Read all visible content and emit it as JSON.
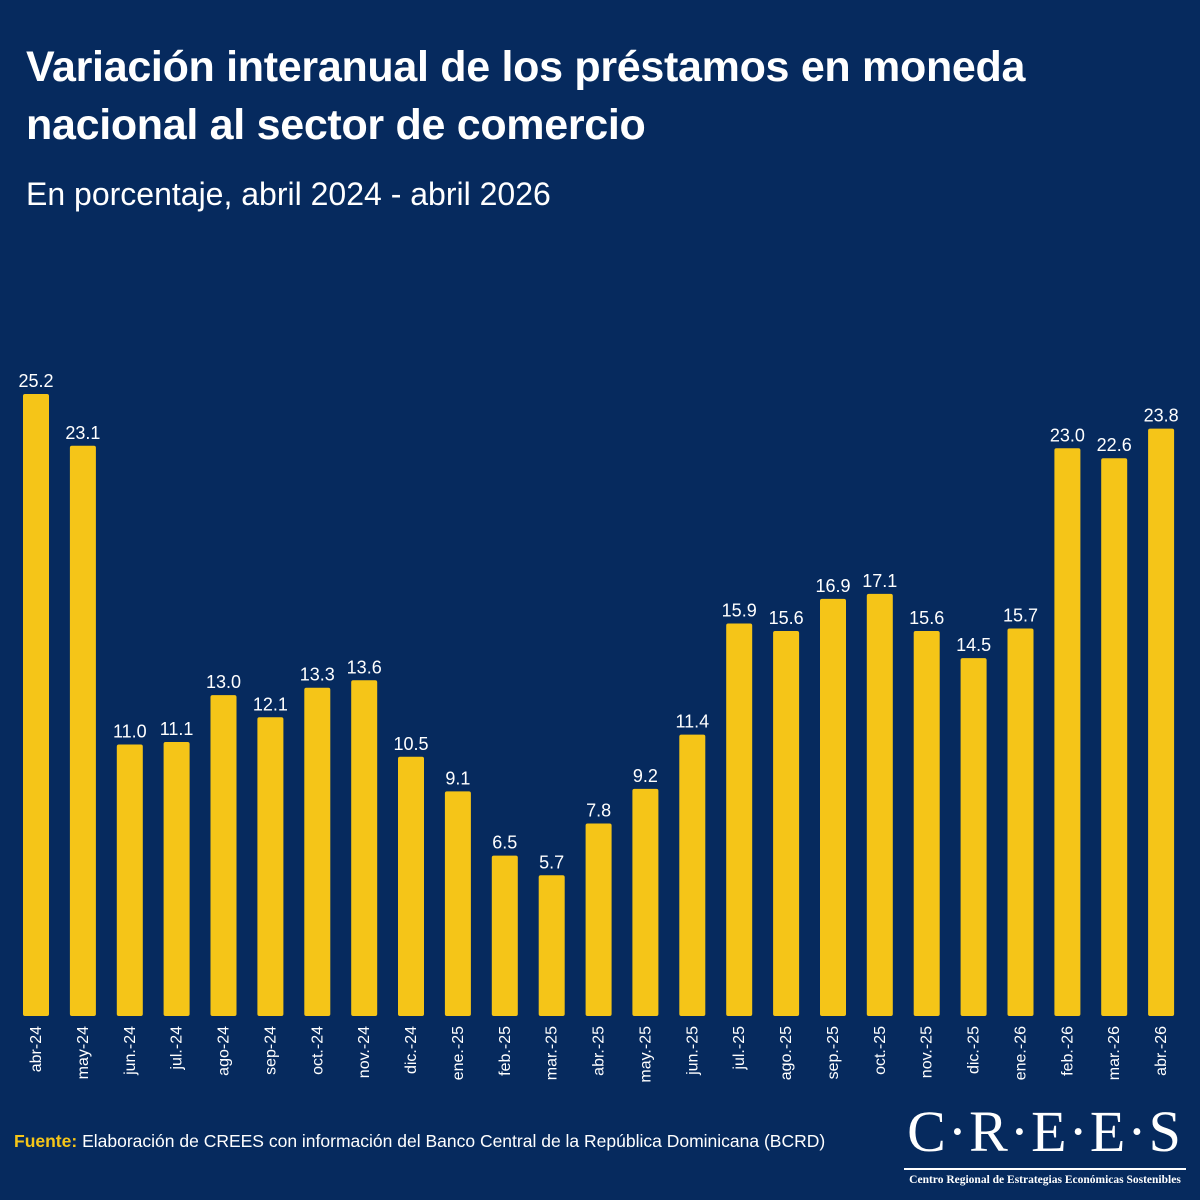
{
  "header": {
    "title": "Variación interanual de los préstamos en moneda nacional al sector de comercio",
    "subtitle": "En porcentaje, abril 2024 - abril 2026"
  },
  "footer": {
    "source_label": "Fuente:",
    "source_text": "Elaboración de CREES con información del Banco Central de la República Dominicana (BCRD)"
  },
  "logo": {
    "wordmark": "C·R·E·E·S",
    "tagline": "Centro Regional de Estrategias Económicas Sostenibles"
  },
  "colors": {
    "background": "#062a5e",
    "bar": "#f5c518",
    "text": "#ffffff"
  },
  "chart_data": {
    "type": "bar",
    "title": "Variación interanual de los préstamos en moneda nacional al sector de comercio",
    "subtitle": "En porcentaje, abril 2024 - abril 2026",
    "categories": [
      "abr-24",
      "may-24",
      "jun.-24",
      "jul.-24",
      "ago-24",
      "sep-24",
      "oct.-24",
      "nov.-24",
      "dic.-24",
      "ene.-25",
      "feb.-25",
      "mar.-25",
      "abr.-25",
      "may.-25",
      "jun.-25",
      "jul.-25",
      "ago.-25",
      "sep.-25",
      "oct.-25",
      "nov.-25",
      "dic.-25",
      "ene.-26",
      "feb.-26",
      "mar.-26",
      "abr.-26"
    ],
    "values": [
      25.2,
      23.1,
      11.0,
      11.1,
      13.0,
      12.1,
      13.3,
      13.6,
      10.5,
      9.1,
      6.5,
      5.7,
      7.8,
      9.2,
      11.4,
      15.9,
      15.6,
      16.9,
      17.1,
      15.6,
      14.5,
      15.7,
      23.0,
      22.6,
      23.8
    ],
    "value_labels": [
      "25.2",
      "23.1",
      "11.0",
      "11.1",
      "13.0",
      "12.1",
      "13.3",
      "13.6",
      "10.5",
      "9.1",
      "6.5",
      "5.7",
      "7.8",
      "9.2",
      "11.4",
      "15.9",
      "15.6",
      "16.9",
      "17.1",
      "15.6",
      "14.5",
      "15.7",
      "23.0",
      "22.6",
      "23.8"
    ],
    "xlabel": "",
    "ylabel": "",
    "ylim": [
      0,
      25.2
    ],
    "grid": false,
    "legend": "none"
  }
}
